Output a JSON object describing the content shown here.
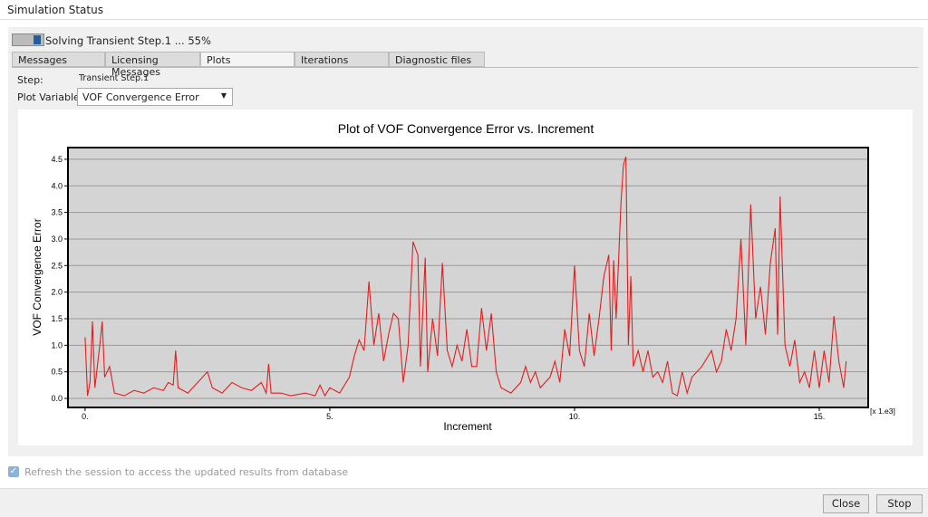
{
  "window": {
    "title": "Simulation Status",
    "status": "Solving Transient Step.1 ... 55%",
    "tabs": [
      "Messages",
      "Licensing Messages",
      "Plots",
      "Iterations",
      "Diagnostic files"
    ],
    "step_label": "Step:",
    "step_value": "Transient Step.1",
    "plot_variable_label": "Plot Variable:",
    "plot_variable_value": "VOF Convergence Error",
    "refresh_text": "Refresh the session to access the updated results from database",
    "buttons": [
      "Close",
      "Stop"
    ]
  },
  "chart_data": {
    "type": "line",
    "title": "Plot of VOF Convergence Error vs. Increment",
    "x_label": "Increment",
    "y_label": "VOF Convergence Error",
    "x_multiplier": "[x 1.e3]",
    "color": "#e02020",
    "grid": true,
    "xlim": [
      -0.35,
      16.0
    ],
    "ylim": [
      -0.17,
      4.72
    ],
    "xticks": [
      {
        "value": 0,
        "label": "0."
      },
      {
        "value": 5,
        "label": "5."
      },
      {
        "value": 10,
        "label": "10."
      },
      {
        "value": 15,
        "label": "15."
      }
    ],
    "yticks": [
      {
        "value": 0,
        "label": "0.0"
      },
      0.5,
      {
        "value": 1,
        "label": "1.0"
      },
      1.5,
      {
        "value": 2,
        "label": "2.0"
      },
      2.5,
      {
        "value": 3,
        "label": "3.0"
      },
      3.5,
      {
        "value": 4,
        "label": "4.0"
      },
      4.5
    ],
    "x": [
      0.0,
      0.05,
      0.1,
      0.15,
      0.2,
      0.3,
      0.35,
      0.4,
      0.5,
      0.6,
      0.8,
      1.0,
      1.2,
      1.4,
      1.6,
      1.7,
      1.8,
      1.85,
      1.9,
      2.1,
      2.3,
      2.5,
      2.6,
      2.8,
      3.0,
      3.2,
      3.4,
      3.6,
      3.7,
      3.75,
      3.8,
      4.0,
      4.2,
      4.5,
      4.7,
      4.8,
      4.9,
      5.0,
      5.2,
      5.4,
      5.5,
      5.6,
      5.7,
      5.8,
      5.9,
      6.0,
      6.1,
      6.2,
      6.3,
      6.4,
      6.5,
      6.6,
      6.7,
      6.8,
      6.85,
      6.95,
      7.0,
      7.1,
      7.2,
      7.3,
      7.4,
      7.5,
      7.6,
      7.7,
      7.8,
      7.9,
      8.0,
      8.1,
      8.2,
      8.3,
      8.4,
      8.5,
      8.7,
      8.9,
      9.0,
      9.1,
      9.2,
      9.3,
      9.5,
      9.6,
      9.7,
      9.8,
      9.9,
      10.0,
      10.1,
      10.2,
      10.3,
      10.4,
      10.5,
      10.6,
      10.7,
      10.75,
      10.8,
      10.85,
      10.9,
      10.95,
      11.0,
      11.05,
      11.1,
      11.15,
      11.2,
      11.3,
      11.4,
      11.5,
      11.6,
      11.7,
      11.8,
      11.9,
      12.0,
      12.1,
      12.2,
      12.3,
      12.4,
      12.6,
      12.8,
      12.9,
      13.0,
      13.1,
      13.2,
      13.3,
      13.4,
      13.5,
      13.6,
      13.7,
      13.8,
      13.9,
      14.0,
      14.1,
      14.15,
      14.2,
      14.3,
      14.4,
      14.5,
      14.6,
      14.7,
      14.8,
      14.9,
      15.0,
      15.1,
      15.2,
      15.3,
      15.4,
      15.5,
      15.55
    ],
    "values": [
      1.15,
      0.05,
      0.3,
      1.45,
      0.2,
      1.0,
      1.45,
      0.4,
      0.6,
      0.1,
      0.05,
      0.15,
      0.1,
      0.2,
      0.15,
      0.3,
      0.25,
      0.9,
      0.2,
      0.1,
      0.3,
      0.5,
      0.2,
      0.1,
      0.3,
      0.2,
      0.15,
      0.3,
      0.1,
      0.65,
      0.1,
      0.1,
      0.05,
      0.1,
      0.05,
      0.25,
      0.05,
      0.2,
      0.1,
      0.4,
      0.8,
      1.1,
      0.9,
      2.2,
      1.0,
      1.6,
      0.7,
      1.2,
      1.6,
      1.5,
      0.3,
      1.0,
      2.95,
      2.7,
      0.6,
      2.65,
      0.5,
      1.5,
      0.8,
      2.55,
      0.9,
      0.6,
      1.0,
      0.7,
      1.3,
      0.6,
      0.6,
      1.7,
      0.9,
      1.6,
      0.5,
      0.2,
      0.1,
      0.3,
      0.6,
      0.3,
      0.5,
      0.2,
      0.4,
      0.7,
      0.3,
      1.3,
      0.8,
      2.5,
      0.9,
      0.6,
      1.6,
      0.8,
      1.5,
      2.3,
      2.7,
      0.9,
      2.6,
      1.5,
      2.6,
      3.7,
      4.4,
      4.55,
      1.0,
      2.3,
      0.6,
      0.9,
      0.5,
      0.9,
      0.4,
      0.5,
      0.3,
      0.7,
      0.1,
      0.05,
      0.5,
      0.1,
      0.4,
      0.6,
      0.9,
      0.5,
      0.7,
      1.3,
      0.9,
      1.5,
      3.0,
      1.0,
      3.65,
      1.5,
      2.1,
      1.2,
      2.55,
      3.2,
      1.2,
      3.8,
      1.0,
      0.6,
      1.1,
      0.3,
      0.5,
      0.2,
      0.9,
      0.2,
      0.9,
      0.3,
      1.55,
      0.7,
      0.2,
      0.7
    ]
  }
}
